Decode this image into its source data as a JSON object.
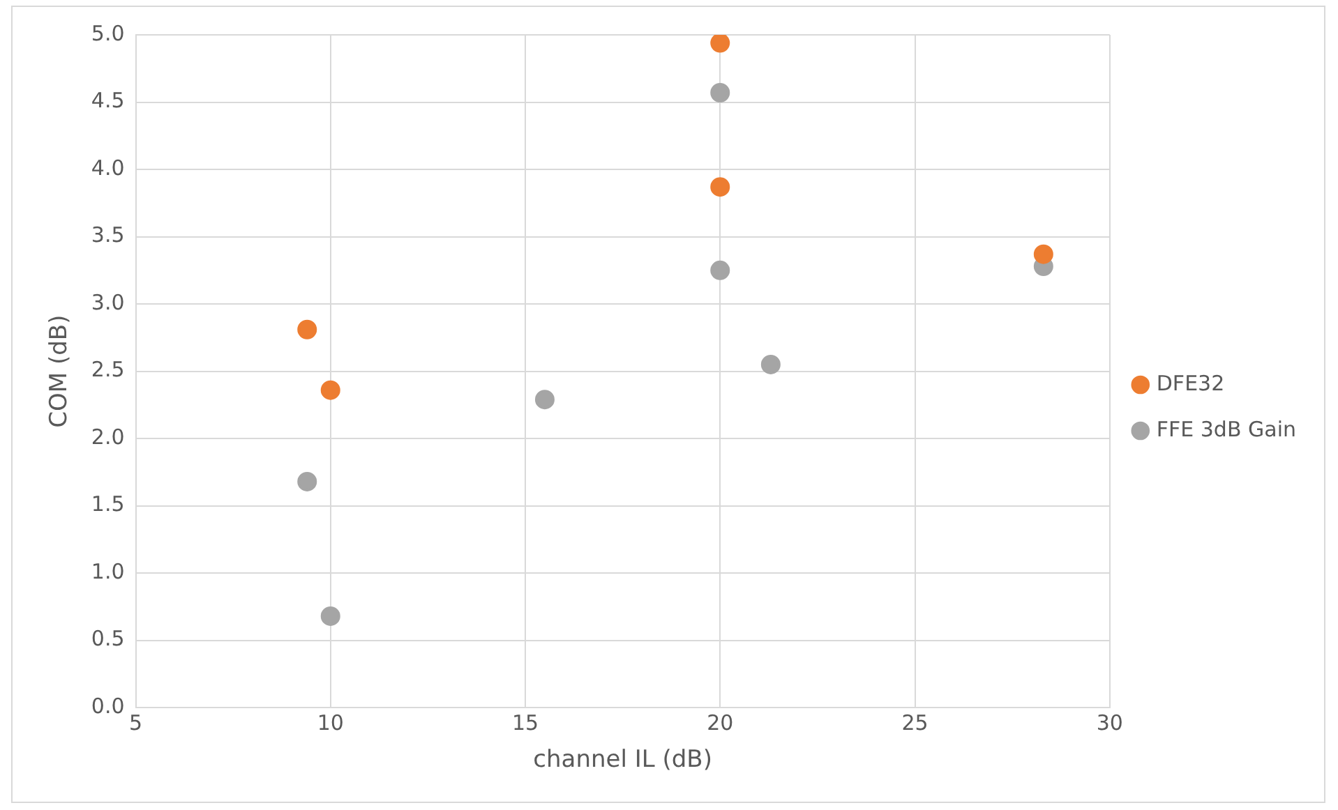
{
  "chart_data": {
    "type": "scatter",
    "xlabel": "channel IL (dB)",
    "ylabel": "COM (dB)",
    "xlim": [
      5,
      30
    ],
    "xticks": [
      5,
      10,
      15,
      20,
      25,
      30
    ],
    "ylim": [
      0,
      5
    ],
    "yticks": [
      {
        "value": 0,
        "label": "0.0"
      },
      {
        "value": 0.5,
        "label": "0.5"
      },
      {
        "value": 1,
        "label": "1.0"
      },
      {
        "value": 1.5,
        "label": "1.5"
      },
      {
        "value": 2,
        "label": "2.0"
      },
      {
        "value": 2.5,
        "label": "2.5"
      },
      {
        "value": 3,
        "label": "3.0"
      },
      {
        "value": 3.5,
        "label": "3.5"
      },
      {
        "value": 4,
        "label": "4.0"
      },
      {
        "value": 4.5,
        "label": "4.5"
      },
      {
        "value": 5,
        "label": "5.0"
      }
    ],
    "grid": true,
    "legend": "right",
    "marker": "circle",
    "series": [
      {
        "name": "DFE32",
        "color": "#ed7d31",
        "x": [
          9.4,
          10,
          20,
          20,
          28.3
        ],
        "values": [
          2.81,
          2.36,
          4.94,
          3.87,
          3.37
        ]
      },
      {
        "name": "FFE 3dB Gain",
        "color": "#a5a5a5",
        "x": [
          9.4,
          10,
          15.5,
          20,
          20,
          21.3,
          28.3
        ],
        "values": [
          1.68,
          0.68,
          2.29,
          4.57,
          3.25,
          2.55,
          3.28
        ]
      }
    ]
  }
}
